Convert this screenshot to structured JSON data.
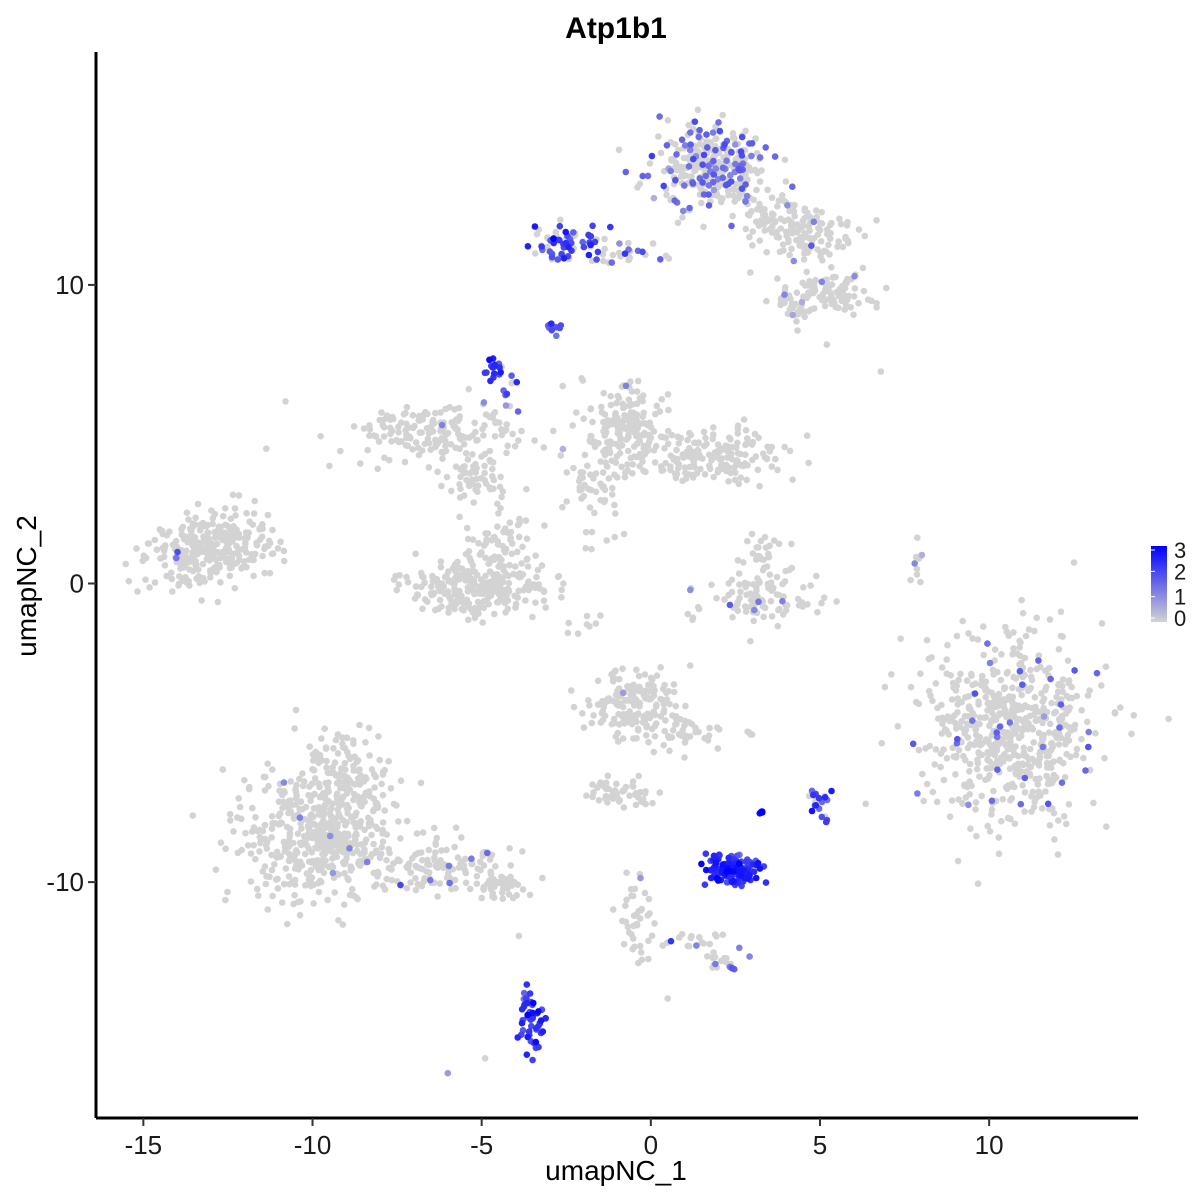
{
  "chart_data": {
    "type": "scatter",
    "title": "Atp1b1",
    "xlabel": "umapNC_1",
    "ylabel": "umapNC_2",
    "xlim": [
      -16.4,
      14.4
    ],
    "ylim": [
      -17.9,
      17.8
    ],
    "xticks": [
      -15,
      -10,
      -5,
      0,
      5,
      10
    ],
    "xtick_labels": [
      "-15",
      "-10",
      "-5",
      "0",
      "5",
      "10"
    ],
    "yticks": [
      10,
      0,
      -10
    ],
    "ytick_labels": [
      "10",
      "0",
      "-10"
    ],
    "grid": false,
    "legend": {
      "position": "right",
      "type": "colorbar",
      "range": [
        0,
        3
      ],
      "ticks": [
        3,
        2,
        1,
        0
      ],
      "tick_labels": [
        "3",
        "2",
        "1",
        "0"
      ],
      "low_color": "#d3d3d3",
      "high_color": "#0000ff"
    },
    "colors": {
      "low": "#d3d3d3",
      "high": "#0000ff"
    },
    "clusters": [
      {
        "cx": 1.8,
        "cy": 13.9,
        "sx": 0.85,
        "sy": 0.75,
        "n": 320,
        "expr_frac": 0.28,
        "expr_level": 1.5
      },
      {
        "cx": 3.6,
        "cy": 12.1,
        "sx": 0.55,
        "sy": 0.45,
        "n": 60,
        "expr_frac": 0.03,
        "expr_level": 1.0
      },
      {
        "cx": 4.8,
        "cy": 11.7,
        "sx": 0.75,
        "sy": 0.45,
        "n": 90,
        "expr_frac": 0.03,
        "expr_level": 1.0
      },
      {
        "cx": 5.4,
        "cy": 9.8,
        "sx": 0.55,
        "sy": 0.35,
        "n": 80,
        "expr_frac": 0.04,
        "expr_level": 1.0
      },
      {
        "cx": 4.2,
        "cy": 9.4,
        "sx": 0.4,
        "sy": 0.3,
        "n": 40,
        "expr_frac": 0.05,
        "expr_level": 1.0
      },
      {
        "cx": -2.5,
        "cy": 11.4,
        "sx": 0.55,
        "sy": 0.35,
        "n": 70,
        "expr_frac": 0.55,
        "expr_level": 2.0
      },
      {
        "cx": -0.6,
        "cy": 11.1,
        "sx": 0.6,
        "sy": 0.18,
        "n": 25,
        "expr_frac": 0.35,
        "expr_level": 1.6
      },
      {
        "cx": -2.9,
        "cy": 8.6,
        "sx": 0.15,
        "sy": 0.12,
        "n": 10,
        "expr_frac": 0.9,
        "expr_level": 1.8
      },
      {
        "cx": -4.6,
        "cy": 7.2,
        "sx": 0.15,
        "sy": 0.2,
        "n": 16,
        "expr_frac": 0.9,
        "expr_level": 2.3
      },
      {
        "cx": -4.2,
        "cy": 6.2,
        "sx": 0.12,
        "sy": 0.3,
        "n": 10,
        "expr_frac": 0.8,
        "expr_level": 1.8
      },
      {
        "cx": -13.2,
        "cy": 1.1,
        "sx": 0.9,
        "sy": 0.6,
        "n": 260,
        "expr_frac": 0.01,
        "expr_level": 1.5
      },
      {
        "cx": -12.0,
        "cy": 1.6,
        "sx": 0.35,
        "sy": 0.7,
        "n": 40,
        "expr_frac": 0.0,
        "expr_level": 0.0
      },
      {
        "cx": -6.4,
        "cy": 5.0,
        "sx": 1.2,
        "sy": 0.55,
        "n": 170,
        "expr_frac": 0.01,
        "expr_level": 1.0
      },
      {
        "cx": -5.3,
        "cy": 3.6,
        "sx": 0.55,
        "sy": 0.45,
        "n": 50,
        "expr_frac": 0.01,
        "expr_level": 1.0
      },
      {
        "cx": -5.2,
        "cy": -0.2,
        "sx": 1.0,
        "sy": 0.45,
        "n": 260,
        "expr_frac": 0.01,
        "expr_level": 1.0
      },
      {
        "cx": -4.3,
        "cy": 1.3,
        "sx": 0.5,
        "sy": 0.7,
        "n": 70,
        "expr_frac": 0.0,
        "expr_level": 0.0
      },
      {
        "cx": -0.7,
        "cy": 5.2,
        "sx": 0.65,
        "sy": 0.75,
        "n": 180,
        "expr_frac": 0.01,
        "expr_level": 1.0
      },
      {
        "cx": 1.8,
        "cy": 4.2,
        "sx": 1.1,
        "sy": 0.45,
        "n": 170,
        "expr_frac": 0.0,
        "expr_level": 0.0
      },
      {
        "cx": -1.8,
        "cy": 3.3,
        "sx": 0.45,
        "sy": 0.5,
        "n": 40,
        "expr_frac": 0.0,
        "expr_level": 0.0
      },
      {
        "cx": 3.2,
        "cy": -0.5,
        "sx": 0.9,
        "sy": 0.45,
        "n": 90,
        "expr_frac": 0.06,
        "expr_level": 1.2
      },
      {
        "cx": 3.3,
        "cy": 0.9,
        "sx": 0.35,
        "sy": 0.45,
        "n": 30,
        "expr_frac": 0.03,
        "expr_level": 1.0
      },
      {
        "cx": 10.7,
        "cy": -4.9,
        "sx": 1.3,
        "sy": 1.5,
        "n": 620,
        "expr_frac": 0.05,
        "expr_level": 1.5
      },
      {
        "cx": -0.5,
        "cy": -4.1,
        "sx": 0.65,
        "sy": 0.6,
        "n": 160,
        "expr_frac": 0.01,
        "expr_level": 1.0
      },
      {
        "cx": 0.9,
        "cy": -5.0,
        "sx": 0.45,
        "sy": 0.35,
        "n": 40,
        "expr_frac": 0.0,
        "expr_level": 0.0
      },
      {
        "cx": -0.9,
        "cy": -7.0,
        "sx": 0.55,
        "sy": 0.25,
        "n": 50,
        "expr_frac": 0.0,
        "expr_level": 0.0
      },
      {
        "cx": -9.8,
        "cy": -8.3,
        "sx": 1.1,
        "sy": 1.1,
        "n": 520,
        "expr_frac": 0.01,
        "expr_level": 1.0
      },
      {
        "cx": -9.0,
        "cy": -6.2,
        "sx": 0.5,
        "sy": 0.8,
        "n": 80,
        "expr_frac": 0.01,
        "expr_level": 1.0
      },
      {
        "cx": -6.0,
        "cy": -9.5,
        "sx": 0.9,
        "sy": 0.4,
        "n": 110,
        "expr_frac": 0.04,
        "expr_level": 1.2
      },
      {
        "cx": -4.5,
        "cy": -10.1,
        "sx": 0.45,
        "sy": 0.25,
        "n": 40,
        "expr_frac": 0.04,
        "expr_level": 1.0
      },
      {
        "cx": 2.4,
        "cy": -9.6,
        "sx": 0.45,
        "sy": 0.22,
        "n": 150,
        "expr_frac": 1.0,
        "expr_level": 2.4
      },
      {
        "cx": 5.0,
        "cy": -7.4,
        "sx": 0.18,
        "sy": 0.3,
        "n": 20,
        "expr_frac": 0.9,
        "expr_level": 2.0
      },
      {
        "cx": 3.3,
        "cy": -7.7,
        "sx": 0.05,
        "sy": 0.05,
        "n": 4,
        "expr_frac": 1.0,
        "expr_level": 3.0
      },
      {
        "cx": 2.9,
        "cy": -5.0,
        "sx": 0.1,
        "sy": 0.06,
        "n": 4,
        "expr_frac": 0.5,
        "expr_level": 1.5
      },
      {
        "cx": -3.5,
        "cy": -14.8,
        "sx": 0.18,
        "sy": 0.5,
        "n": 45,
        "expr_frac": 1.0,
        "expr_level": 2.3
      },
      {
        "cx": -3.7,
        "cy": -13.7,
        "sx": 0.05,
        "sy": 0.25,
        "n": 6,
        "expr_frac": 0.8,
        "expr_level": 2.0
      },
      {
        "cx": -0.4,
        "cy": -11.3,
        "sx": 0.2,
        "sy": 0.8,
        "n": 40,
        "expr_frac": 0.05,
        "expr_level": 1.0
      },
      {
        "cx": 1.1,
        "cy": -11.9,
        "sx": 0.5,
        "sy": 0.25,
        "n": 18,
        "expr_frac": 0.1,
        "expr_level": 1.5
      },
      {
        "cx": 2.2,
        "cy": -12.6,
        "sx": 0.3,
        "sy": 0.2,
        "n": 22,
        "expr_frac": 0.3,
        "expr_level": 1.5
      },
      {
        "cx": 7.9,
        "cy": 0.3,
        "sx": 0.1,
        "sy": 0.5,
        "n": 10,
        "expr_frac": 0.2,
        "expr_level": 1.0
      },
      {
        "cx": -1.9,
        "cy": -1.3,
        "sx": 0.3,
        "sy": 0.2,
        "n": 8,
        "expr_frac": 0.0,
        "expr_level": 0.0
      },
      {
        "cx": -1.5,
        "cy": 1.4,
        "sx": 0.35,
        "sy": 0.25,
        "n": 8,
        "expr_frac": 0.1,
        "expr_level": 1.0
      }
    ],
    "extra_points": [
      {
        "x": -10.8,
        "y": 6.1,
        "v": 0
      },
      {
        "x": 6.8,
        "y": 7.1,
        "v": 0
      },
      {
        "x": 5.2,
        "y": 8.0,
        "v": 0
      },
      {
        "x": -6.0,
        "y": -16.4,
        "v": 0.8
      },
      {
        "x": -4.9,
        "y": -15.9,
        "v": 0
      },
      {
        "x": 0.5,
        "y": -13.9,
        "v": 0
      },
      {
        "x": -3.9,
        "y": -11.8,
        "v": 0
      },
      {
        "x": -2.6,
        "y": 4.5,
        "v": 0.5
      },
      {
        "x": -7.4,
        "y": -10.1,
        "v": 2.0
      },
      {
        "x": -0.8,
        "y": -7.5,
        "v": 0
      }
    ]
  }
}
